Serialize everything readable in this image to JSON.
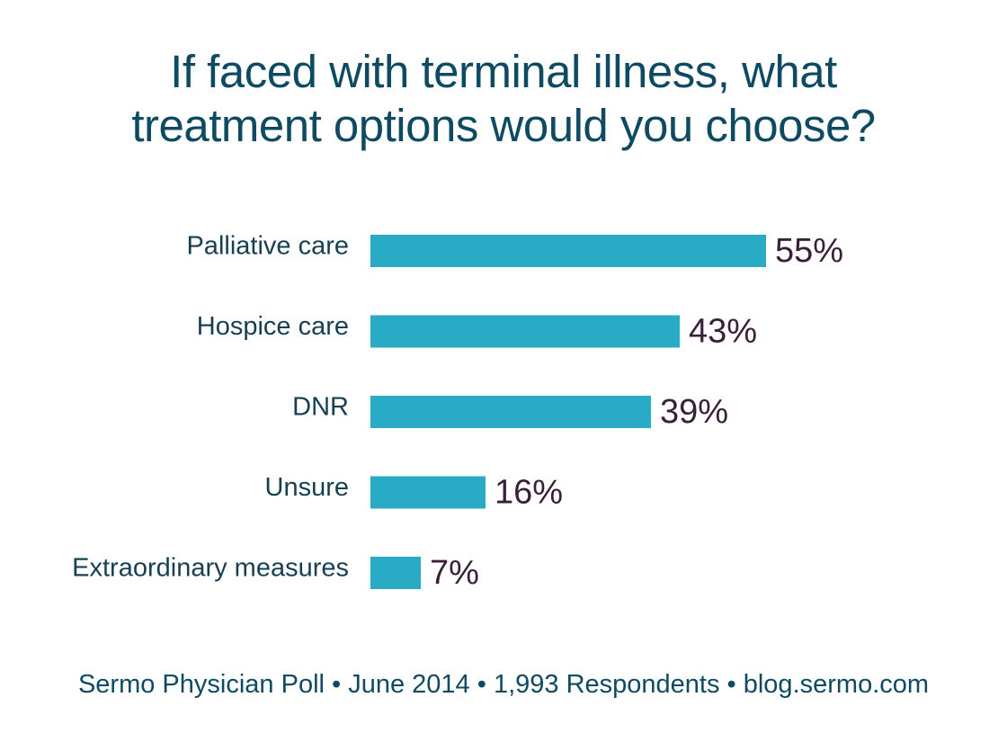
{
  "chart_data": {
    "type": "bar",
    "orientation": "horizontal",
    "title": "If faced with terminal illness, what\ntreatment options would you choose?",
    "categories": [
      "Palliative care",
      "Hospice care",
      "DNR",
      "Unsure",
      "Extraordinary measures"
    ],
    "values": [
      55,
      43,
      39,
      16,
      7
    ],
    "value_labels": [
      "55%",
      "43%",
      "39%",
      "16%",
      "7%"
    ],
    "unit": "%",
    "xlim": [
      0,
      55
    ],
    "grid": false,
    "legend": "none",
    "colors": {
      "bar": "#29abc5",
      "value_label": "#3a1f3a",
      "category_label": "#173f52",
      "title": "#0f4a63"
    }
  },
  "footer": "Sermo Physician Poll • June 2014 • 1,993 Respondents • blog.sermo.com"
}
